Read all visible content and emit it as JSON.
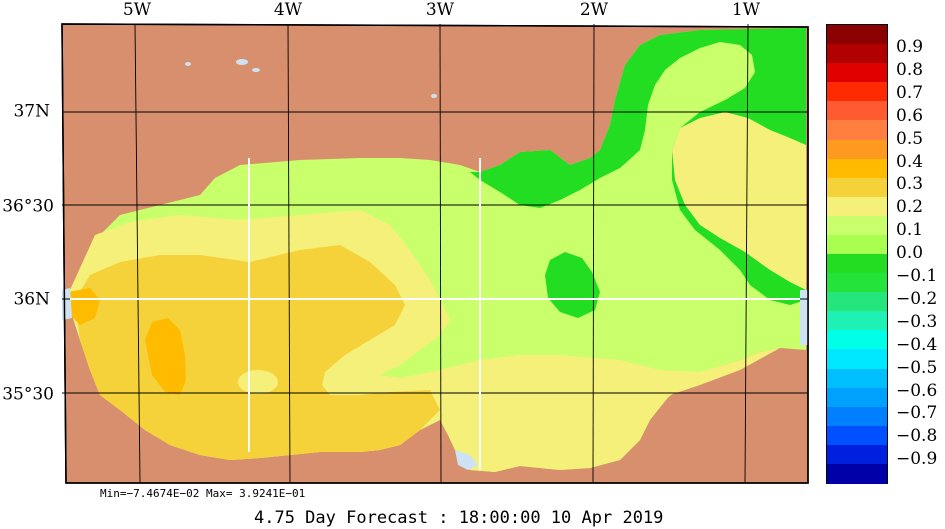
{
  "map": {
    "longitude_labels": [
      "5W",
      "4W",
      "3W",
      "2W",
      "1W"
    ],
    "latitude_labels": [
      "37N",
      "36°30",
      "36N",
      "35°30"
    ],
    "colors": {
      "land": "#d88f6e",
      "water": "#cde3f5",
      "grid": "#000000",
      "transect": "#ffffff"
    }
  },
  "colorbar": {
    "colors": [
      "#8b0000",
      "#b00000",
      "#e00000",
      "#ff2a00",
      "#ff5a30",
      "#ff7f40",
      "#ff9a20",
      "#ffbb00",
      "#f6d23a",
      "#f5f07a",
      "#c8ff6b",
      "#a8ff4f",
      "#23dd23",
      "#24e43c",
      "#24e67a",
      "#1ff0b4",
      "#00ffe6",
      "#00e8ff",
      "#00bfff",
      "#00a0ff",
      "#0080ff",
      "#0050ff",
      "#0020e0",
      "#0000a8"
    ],
    "labels": [
      "0.9",
      "0.8",
      "0.7",
      "0.6",
      "0.5",
      "0.4",
      "0.3",
      "0.2",
      "0.1",
      "0.0",
      "−0.1",
      "−0.2",
      "−0.3",
      "−0.4",
      "−0.5",
      "−0.6",
      "−0.7",
      "−0.8",
      "−0.9"
    ]
  },
  "stats": {
    "minmax": "Min=−7.4674E−02  Max= 3.9241E−01"
  },
  "footer": {
    "forecast": "4.75 Day Forecast : 18:00:00  10 Apr 2019"
  }
}
